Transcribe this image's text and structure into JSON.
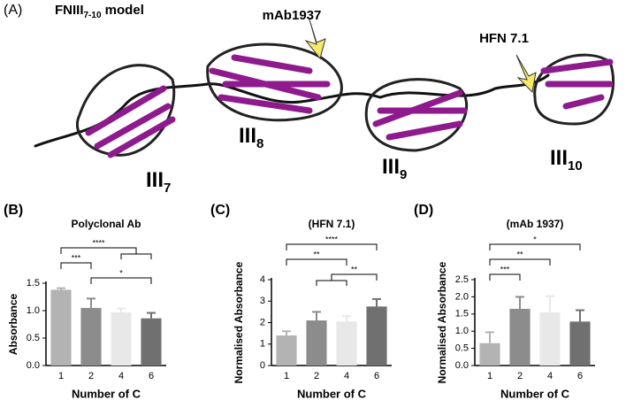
{
  "panel_a": {
    "panel": "(A)",
    "title": {
      "main": "FNIII",
      "sub": "7-10",
      "rest": " model"
    },
    "arrows": [
      "mAb1937",
      "HFN 7.1"
    ],
    "domains": [
      {
        "main": "III",
        "sub": "7"
      },
      {
        "main": "III",
        "sub": "8"
      },
      {
        "main": "III",
        "sub": "9"
      },
      {
        "main": "III",
        "sub": "10"
      }
    ]
  },
  "chart_data": [
    {
      "type": "bar",
      "panel": "(B)",
      "title": "Polyclonal Ab",
      "x_label": "Number of C",
      "y_label": "Absorbance",
      "categories": [
        "1",
        "2",
        "4",
        "6"
      ],
      "values": [
        1.38,
        1.05,
        0.97,
        0.86
      ],
      "errors": [
        0.03,
        0.17,
        0.07,
        0.1
      ],
      "colors": [
        "#b3b3b3",
        "#8c8c8c",
        "#e8e8e8",
        "#707070"
      ],
      "ylim": [
        0,
        1.5
      ],
      "yticks": [
        {
          "value": 0,
          "label": "0.0"
        },
        {
          "value": 0.5,
          "label": "0.5"
        },
        {
          "value": 1,
          "label": "1.0"
        },
        {
          "value": 1.5,
          "label": "1.5"
        }
      ],
      "annotations": [
        {
          "text": "****",
          "between": [
            [
              "1"
            ],
            [
              "4",
              "6"
            ]
          ]
        },
        {
          "text": "***",
          "between": [
            [
              "1"
            ],
            [
              "2"
            ]
          ]
        },
        {
          "text": "*",
          "between": [
            [
              "2"
            ],
            [
              "6"
            ]
          ]
        }
      ]
    },
    {
      "type": "bar",
      "panel": "(C)",
      "title": "(HFN 7.1)",
      "x_label": "Number of C",
      "y_label": "Normalised Absorbance",
      "categories": [
        "1",
        "2",
        "4",
        "6"
      ],
      "values": [
        1.4,
        2.1,
        2.05,
        2.75
      ],
      "errors": [
        0.2,
        0.4,
        0.25,
        0.35
      ],
      "colors": [
        "#b3b3b3",
        "#8c8c8c",
        "#e8e8e8",
        "#707070"
      ],
      "ylim": [
        0,
        4
      ],
      "yticks": [
        0,
        1,
        2,
        3,
        4
      ],
      "annotations": [
        {
          "text": "****",
          "between": [
            [
              "1"
            ],
            [
              "6"
            ]
          ]
        },
        {
          "text": "**",
          "between": [
            [
              "1"
            ],
            [
              "4"
            ]
          ]
        },
        {
          "text": "**",
          "between": [
            [
              "2",
              "4"
            ],
            [
              "6"
            ]
          ]
        }
      ]
    },
    {
      "type": "bar",
      "panel": "(D)",
      "title": "(mAb 1937)",
      "x_label": "Number of C",
      "y_label": "Normalised Absorbance",
      "categories": [
        "1",
        "2",
        "4",
        "6"
      ],
      "values": [
        0.65,
        1.65,
        1.55,
        1.28
      ],
      "errors": [
        0.32,
        0.35,
        0.47,
        0.33
      ],
      "colors": [
        "#b3b3b3",
        "#8c8c8c",
        "#e8e8e8",
        "#707070"
      ],
      "ylim": [
        0,
        2.5
      ],
      "yticks": [
        {
          "value": 0,
          "label": "0.0"
        },
        {
          "value": 0.5,
          "label": "0.5"
        },
        {
          "value": 1,
          "label": "1.0"
        },
        {
          "value": 1.5,
          "label": "1.5"
        },
        {
          "value": 2,
          "label": "2.0"
        },
        {
          "value": 2.5,
          "label": "2.5"
        }
      ],
      "annotations": [
        {
          "text": "*",
          "between": [
            [
              "1"
            ],
            [
              "6"
            ]
          ]
        },
        {
          "text": "**",
          "between": [
            [
              "1"
            ],
            [
              "4"
            ]
          ]
        },
        {
          "text": "***",
          "between": [
            [
              "1"
            ],
            [
              "2"
            ]
          ]
        }
      ]
    }
  ]
}
